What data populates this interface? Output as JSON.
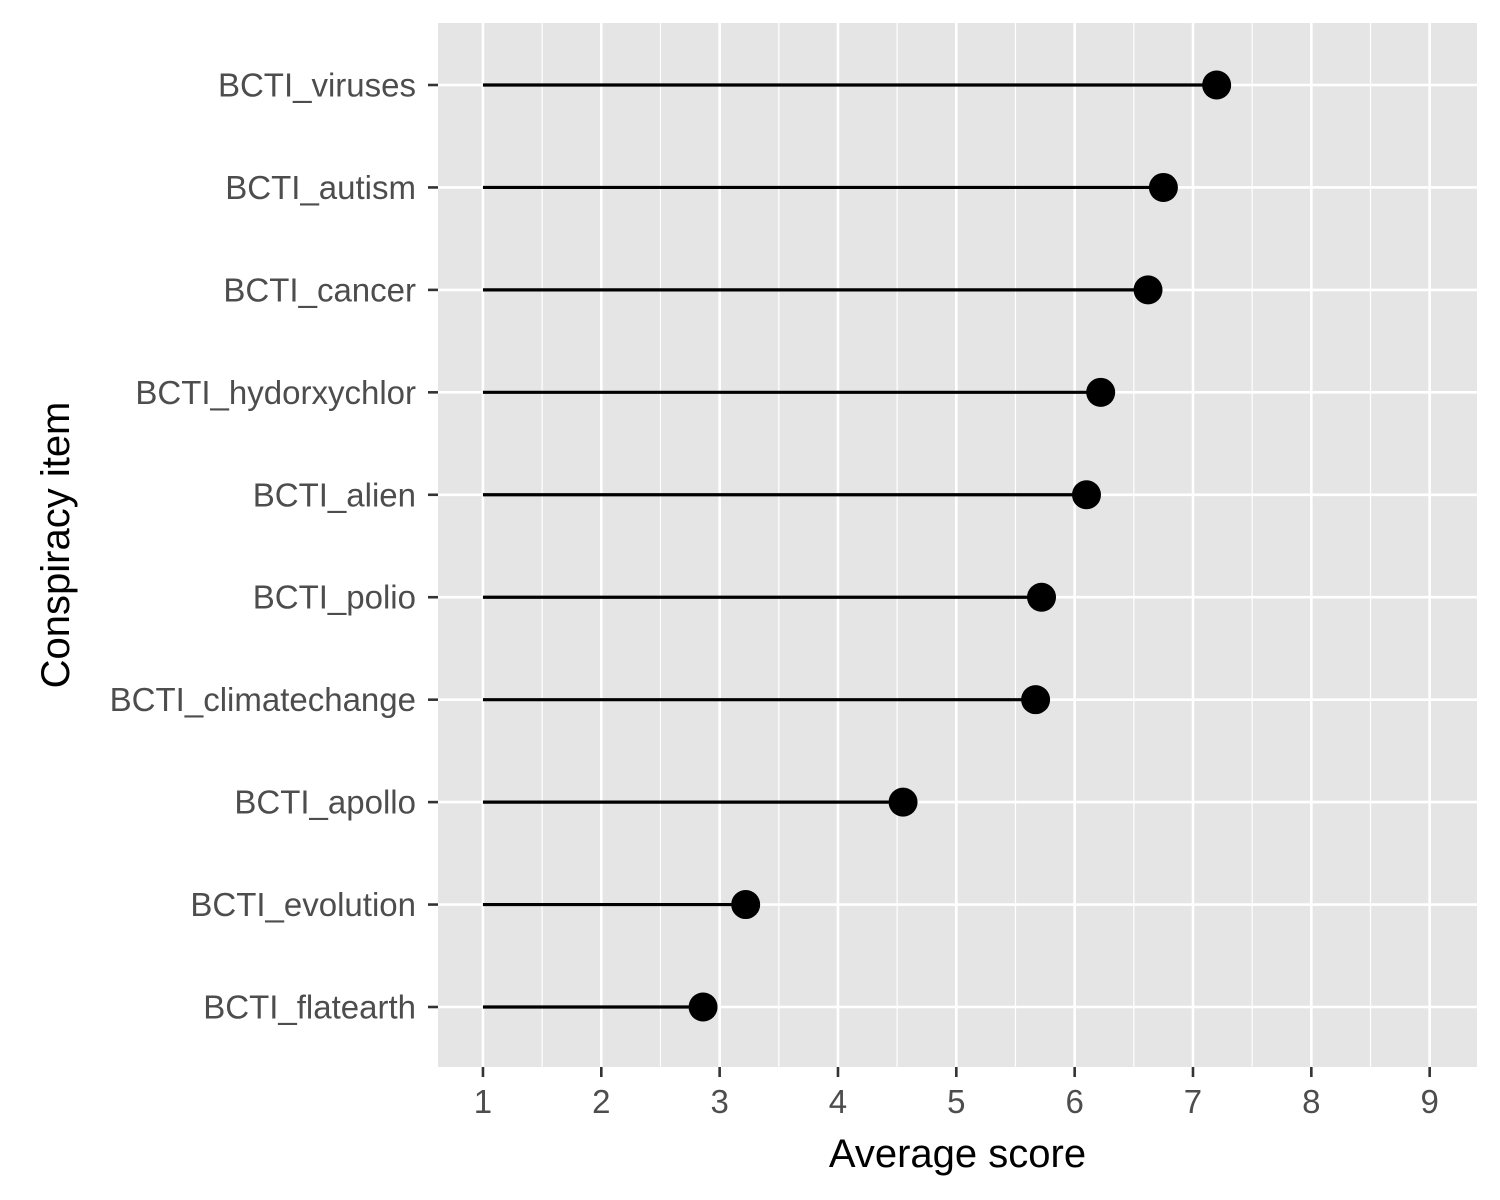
{
  "chart_data": {
    "type": "lollipop",
    "xlabel": "Average score",
    "ylabel": "Conspiracy item",
    "xlim": [
      0.62,
      9.4
    ],
    "x_ticks": [
      1,
      2,
      3,
      4,
      5,
      6,
      7,
      8,
      9
    ],
    "x_tick_labels": [
      "1",
      "2",
      "3",
      "4",
      "5",
      "6",
      "7",
      "8",
      "9"
    ],
    "grid": true,
    "segment_start": 1,
    "categories": [
      "BCTI_viruses",
      "BCTI_autism",
      "BCTI_cancer",
      "BCTI_hydorxychlor",
      "BCTI_alien",
      "BCTI_polio",
      "BCTI_climatechange",
      "BCTI_apollo",
      "BCTI_evolution",
      "BCTI_flatearth"
    ],
    "values": [
      7.2,
      6.75,
      6.62,
      6.22,
      6.1,
      5.72,
      5.67,
      4.55,
      3.22,
      2.86
    ],
    "colors": {
      "panel": "#e5e5e5",
      "grid": "#ffffff",
      "mark": "#000000",
      "tick": "#333333"
    }
  }
}
